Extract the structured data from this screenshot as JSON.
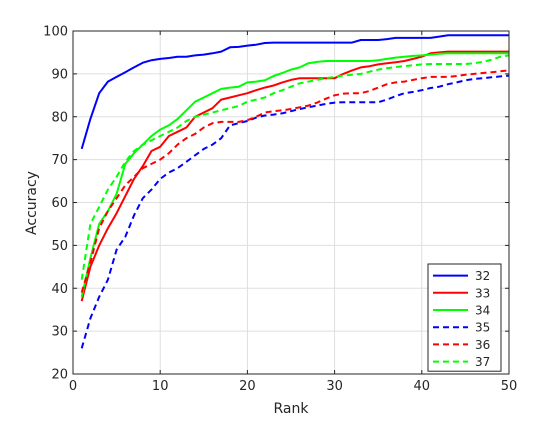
{
  "chart_data": {
    "type": "line",
    "title": "",
    "xlabel": "Rank",
    "ylabel": "Accuracy",
    "xlim": [
      0,
      50
    ],
    "ylim": [
      20,
      100
    ],
    "xticks": [
      0,
      10,
      20,
      30,
      40,
      50
    ],
    "yticks": [
      20,
      30,
      40,
      50,
      60,
      70,
      80,
      90,
      100
    ],
    "xtick_labels": [
      "0",
      "10",
      "20",
      "30",
      "40",
      "50"
    ],
    "ytick_labels": [
      "20",
      "30",
      "40",
      "50",
      "60",
      "70",
      "80",
      "90",
      "100"
    ],
    "grid": true,
    "legend_position": "bottom-right",
    "series": [
      {
        "name": "32",
        "color": "#0000ff",
        "dash": "solid",
        "x": [
          1,
          2,
          3,
          4,
          5,
          6,
          7,
          8,
          9,
          10,
          11,
          12,
          13,
          14,
          15,
          16,
          17,
          18,
          19,
          20,
          21,
          22,
          23,
          24,
          25,
          26,
          27,
          28,
          29,
          30,
          31,
          32,
          33,
          34,
          35,
          36,
          37,
          38,
          39,
          40,
          41,
          42,
          43,
          44,
          45,
          46,
          47,
          48,
          49,
          50
        ],
        "y": [
          72.5,
          79.5,
          85.5,
          88.2,
          89.3,
          90.4,
          91.5,
          92.6,
          93.2,
          93.5,
          93.7,
          94,
          94,
          94.3,
          94.5,
          94.8,
          95.2,
          96.2,
          96.3,
          96.6,
          96.8,
          97.2,
          97.3,
          97.3,
          97.3,
          97.3,
          97.3,
          97.3,
          97.3,
          97.3,
          97.3,
          97.3,
          97.9,
          97.9,
          97.9,
          98.1,
          98.4,
          98.4,
          98.4,
          98.4,
          98.4,
          98.7,
          99,
          99,
          99,
          99,
          99,
          99,
          99,
          99
        ]
      },
      {
        "name": "33",
        "color": "#ff0000",
        "dash": "solid",
        "x": [
          1,
          2,
          3,
          4,
          5,
          6,
          7,
          8,
          9,
          10,
          11,
          12,
          13,
          14,
          15,
          16,
          17,
          18,
          19,
          20,
          21,
          22,
          23,
          24,
          25,
          26,
          27,
          28,
          29,
          30,
          31,
          32,
          33,
          34,
          35,
          36,
          37,
          38,
          39,
          40,
          41,
          42,
          43,
          44,
          45,
          46,
          47,
          48,
          49,
          50
        ],
        "y": [
          37,
          45,
          50,
          54,
          57.5,
          61.5,
          65.5,
          68.5,
          72,
          73,
          75.5,
          76.5,
          77.5,
          80,
          81,
          82,
          84,
          84.5,
          85,
          85.5,
          86.2,
          86.8,
          87.3,
          88,
          88.6,
          89,
          89,
          89,
          89,
          89,
          90,
          90.8,
          91.5,
          91.8,
          92.2,
          92.5,
          92.7,
          93,
          93.5,
          94,
          94.8,
          95,
          95.2,
          95.2,
          95.2,
          95.2,
          95.2,
          95.2,
          95.2,
          95.2
        ]
      },
      {
        "name": "34",
        "color": "#00ff00",
        "dash": "solid",
        "x": [
          1,
          2,
          3,
          4,
          5,
          6,
          7,
          8,
          9,
          10,
          11,
          12,
          13,
          14,
          15,
          16,
          17,
          18,
          19,
          20,
          21,
          22,
          23,
          24,
          25,
          26,
          27,
          28,
          29,
          30,
          31,
          32,
          33,
          34,
          35,
          36,
          37,
          38,
          39,
          40,
          41,
          42,
          43,
          44,
          45,
          46,
          47,
          48,
          49,
          50
        ],
        "y": [
          38,
          47,
          55,
          58,
          62,
          69,
          71.5,
          73.5,
          75.5,
          77,
          78,
          79.5,
          81.5,
          83.5,
          84.5,
          85.5,
          86.5,
          86.8,
          87,
          88,
          88.2,
          88.5,
          89.5,
          90.2,
          91,
          91.5,
          92.5,
          92.8,
          93,
          93,
          93,
          93,
          93,
          93,
          93.2,
          93.5,
          93.8,
          94,
          94.2,
          94.3,
          94.5,
          94.7,
          94.8,
          94.8,
          94.8,
          94.8,
          94.8,
          94.8,
          94.8,
          94.8
        ]
      },
      {
        "name": "35",
        "color": "#0000ff",
        "dash": "dashed",
        "x": [
          1,
          2,
          3,
          4,
          5,
          6,
          7,
          8,
          9,
          10,
          11,
          12,
          13,
          14,
          15,
          16,
          17,
          18,
          19,
          20,
          21,
          22,
          23,
          24,
          25,
          26,
          27,
          28,
          29,
          30,
          31,
          32,
          33,
          34,
          35,
          36,
          37,
          38,
          39,
          40,
          41,
          42,
          43,
          44,
          45,
          46,
          47,
          48,
          49,
          50
        ],
        "y": [
          26,
          33,
          38,
          42,
          49,
          52,
          57,
          61,
          63,
          65.5,
          67,
          68,
          69.5,
          71,
          72.5,
          73.5,
          75,
          78,
          78.5,
          79,
          79.8,
          80.3,
          80.5,
          80.8,
          81.3,
          81.8,
          82.2,
          82.6,
          83,
          83.3,
          83.4,
          83.4,
          83.4,
          83.4,
          83.4,
          84,
          84.8,
          85.5,
          85.8,
          86.2,
          86.7,
          87,
          87.6,
          88,
          88.5,
          88.8,
          89,
          89.2,
          89.4,
          89.6
        ]
      },
      {
        "name": "36",
        "color": "#ff0000",
        "dash": "dashed",
        "x": [
          1,
          2,
          3,
          4,
          5,
          6,
          7,
          8,
          9,
          10,
          11,
          12,
          13,
          14,
          15,
          16,
          17,
          18,
          19,
          20,
          21,
          22,
          23,
          24,
          25,
          26,
          27,
          28,
          29,
          30,
          31,
          32,
          33,
          34,
          35,
          36,
          37,
          38,
          39,
          40,
          41,
          42,
          43,
          44,
          45,
          46,
          47,
          48,
          49,
          50
        ],
        "y": [
          39,
          46,
          54,
          58,
          61,
          64,
          66,
          68,
          69,
          70,
          71.5,
          73.5,
          75,
          76,
          77.5,
          78.5,
          78.8,
          78.8,
          78.8,
          79.2,
          80,
          81,
          81.3,
          81.5,
          81.8,
          82.2,
          82.6,
          83.3,
          84.2,
          85,
          85.4,
          85.5,
          85.5,
          86,
          86.8,
          87.6,
          88,
          88.2,
          88.6,
          89,
          89.3,
          89.3,
          89.3,
          89.5,
          89.8,
          90,
          90.2,
          90.4,
          90.6,
          90.8
        ]
      },
      {
        "name": "37",
        "color": "#00ff00",
        "dash": "dashed",
        "x": [
          1,
          2,
          3,
          4,
          5,
          6,
          7,
          8,
          9,
          10,
          11,
          12,
          13,
          14,
          15,
          16,
          17,
          18,
          19,
          20,
          21,
          22,
          23,
          24,
          25,
          26,
          27,
          28,
          29,
          30,
          31,
          32,
          33,
          34,
          35,
          36,
          37,
          38,
          39,
          40,
          41,
          42,
          43,
          44,
          45,
          46,
          47,
          48,
          49,
          50
        ],
        "y": [
          42,
          55,
          59,
          63,
          66,
          69.5,
          72,
          73.5,
          74.5,
          75.5,
          76.5,
          77.5,
          79,
          80,
          80.5,
          81,
          81.5,
          82,
          82.5,
          83.5,
          84,
          84.5,
          85.5,
          86.2,
          87,
          87.8,
          88.2,
          88.6,
          89,
          89.3,
          89.6,
          89.8,
          90,
          90.5,
          91,
          91.3,
          91.6,
          91.8,
          92,
          92.2,
          92.3,
          92.3,
          92.3,
          92.3,
          92.3,
          92.5,
          92.8,
          93.3,
          94,
          94.3
        ]
      }
    ]
  }
}
